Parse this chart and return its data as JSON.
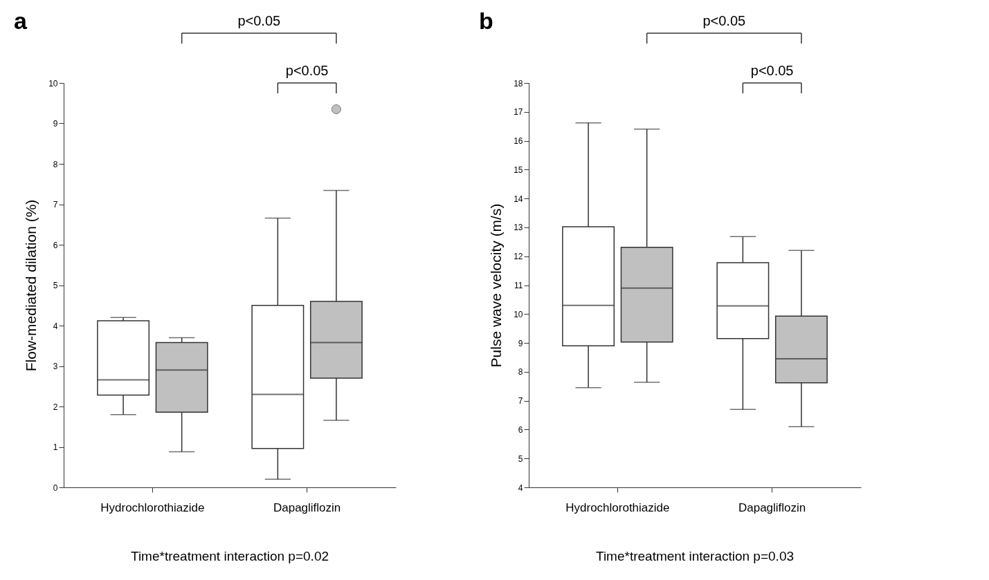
{
  "chart_data": [
    {
      "type": "box",
      "title": "a",
      "ylabel": "Flow-mediated dilation (%)",
      "categories": [
        "Hydrochlorothiazide",
        "Dapagliflozin"
      ],
      "ylim": [
        0,
        10
      ],
      "yticks": [
        0,
        1,
        2,
        3,
        4,
        5,
        6,
        7,
        8,
        9,
        10
      ],
      "series": [
        {
          "color": "#ffffff",
          "boxes": [
            {
              "low": 1.8,
              "q1": 2.28,
              "median": 2.66,
              "q3": 4.12,
              "high": 4.2
            },
            {
              "low": 0.2,
              "q1": 0.96,
              "median": 2.3,
              "q3": 4.5,
              "high": 6.66
            }
          ]
        },
        {
          "color": "#c0c0c0",
          "boxes": [
            {
              "low": 0.88,
              "q1": 1.86,
              "median": 2.9,
              "q3": 3.58,
              "high": 3.7
            },
            {
              "low": 1.66,
              "q1": 2.7,
              "median": 3.58,
              "q3": 4.6,
              "high": 7.34,
              "outliers": [
                9.35
              ]
            }
          ]
        }
      ],
      "annotations": [
        "p<0.05",
        "p<0.05",
        "Time*treatment interaction p=0.02"
      ]
    },
    {
      "type": "box",
      "title": "b",
      "ylabel": "Pulse wave velocity (m/s)",
      "categories": [
        "Hydrochlorothiazide",
        "Dapagliflozin"
      ],
      "ylim": [
        4,
        18
      ],
      "yticks": [
        4,
        5,
        6,
        7,
        8,
        9,
        10,
        11,
        12,
        13,
        14,
        15,
        16,
        17,
        18
      ],
      "series": [
        {
          "color": "#ffffff",
          "boxes": [
            {
              "low": 7.45,
              "q1": 8.9,
              "median": 10.3,
              "q3": 13.02,
              "high": 16.62
            },
            {
              "low": 6.7,
              "q1": 9.15,
              "median": 10.28,
              "q3": 11.78,
              "high": 12.68
            }
          ]
        },
        {
          "color": "#c0c0c0",
          "boxes": [
            {
              "low": 7.64,
              "q1": 9.03,
              "median": 10.9,
              "q3": 12.31,
              "high": 16.4
            },
            {
              "low": 6.1,
              "q1": 7.62,
              "median": 8.45,
              "q3": 9.93,
              "high": 12.2
            }
          ]
        }
      ],
      "annotations": [
        "p<0.05",
        "p<0.05",
        "Time*treatment interaction p=0.03"
      ]
    }
  ]
}
